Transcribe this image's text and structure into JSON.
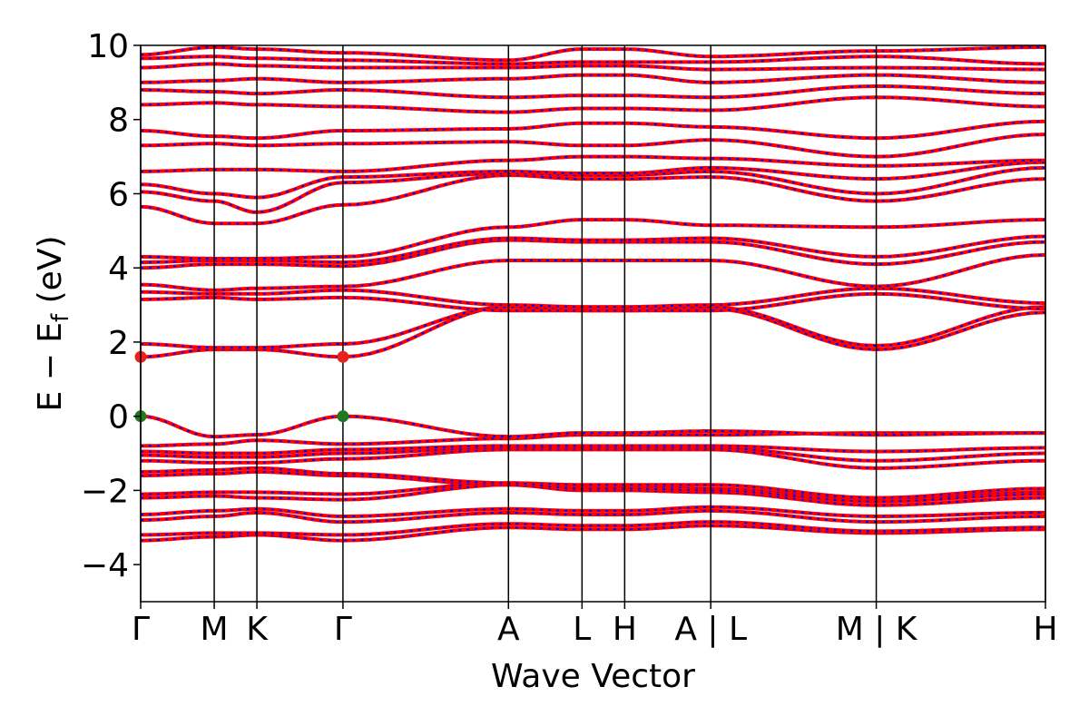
{
  "chart_data": {
    "type": "line",
    "xlabel": "Wave Vector",
    "ylabel_parts": {
      "main": "E − E",
      "sub": "f",
      "unit": " (eV)"
    },
    "ylim": [
      -5,
      10
    ],
    "yticks": [
      {
        "value": -4,
        "label": "−4"
      },
      {
        "value": -2,
        "label": "−2"
      },
      {
        "value": 0,
        "label": "0"
      },
      {
        "value": 2,
        "label": "2"
      },
      {
        "value": 4,
        "label": "4"
      },
      {
        "value": 6,
        "label": "6"
      },
      {
        "value": 8,
        "label": "8"
      },
      {
        "value": 10,
        "label": "10"
      }
    ],
    "xlim": [
      0,
      12.3
    ],
    "kpoints": [
      {
        "x": 0.0,
        "label": "Γ"
      },
      {
        "x": 1.0,
        "label": "M"
      },
      {
        "x": 1.58,
        "label": "K"
      },
      {
        "x": 2.75,
        "label": "Γ"
      },
      {
        "x": 5.0,
        "label": "A"
      },
      {
        "x": 6.0,
        "label": "L"
      },
      {
        "x": 6.58,
        "label": "H"
      },
      {
        "x": 7.75,
        "label": "A | L"
      },
      {
        "x": 10.0,
        "label": "M | K"
      },
      {
        "x": 12.3,
        "label": "H"
      }
    ],
    "grid": false,
    "style": {
      "line_color": "#ff0000",
      "overlay_color": "#0000ff"
    },
    "markers": [
      {
        "x": 0.0,
        "y": 1.6,
        "color": "#e8231f"
      },
      {
        "x": 2.75,
        "y": 1.6,
        "color": "#e8231f"
      },
      {
        "x": 0.0,
        "y": 0.0,
        "color": "#1f7a1f"
      },
      {
        "x": 2.75,
        "y": 0.0,
        "color": "#1f7a1f"
      }
    ],
    "bands": [
      [
        -3.35,
        -3.25,
        -3.2,
        -3.35,
        -3.0,
        -3.05,
        -3.05,
        -2.95,
        -3.15,
        -3.05
      ],
      [
        -3.2,
        -3.15,
        -3.15,
        -3.2,
        -2.9,
        -2.95,
        -2.95,
        -2.85,
        -3.1,
        -3.0
      ],
      [
        -2.8,
        -2.7,
        -2.6,
        -2.85,
        -2.6,
        -2.65,
        -2.65,
        -2.55,
        -2.85,
        -2.7
      ],
      [
        -2.65,
        -2.55,
        -2.5,
        -2.7,
        -2.5,
        -2.55,
        -2.55,
        -2.45,
        -2.7,
        -2.6
      ],
      [
        -2.2,
        -2.15,
        -2.2,
        -2.25,
        -1.85,
        -1.9,
        -1.9,
        -1.95,
        -2.25,
        -2.05
      ],
      [
        -2.1,
        -2.05,
        -2.05,
        -2.1,
        -1.8,
        -1.85,
        -1.85,
        -1.85,
        -2.2,
        -1.95
      ],
      [
        -1.6,
        -1.55,
        -1.5,
        -1.6,
        -1.85,
        -2.0,
        -2.0,
        -2.05,
        -2.4,
        -2.2
      ],
      [
        -1.5,
        -1.45,
        -1.4,
        -1.55,
        -1.8,
        -1.95,
        -1.95,
        -2.0,
        -2.3,
        -2.1
      ],
      [
        -1.2,
        -1.25,
        -1.25,
        -1.15,
        -0.9,
        -0.9,
        -0.9,
        -0.9,
        -1.4,
        -1.2
      ],
      [
        -1.05,
        -1.1,
        -1.1,
        -1.0,
        -0.85,
        -0.85,
        -0.85,
        -0.85,
        -1.2,
        -1.0
      ],
      [
        -0.95,
        -1.0,
        -1.0,
        -0.9,
        -0.8,
        -0.8,
        -0.8,
        -0.8,
        -0.95,
        -0.85
      ],
      [
        -0.8,
        -0.75,
        -0.65,
        -0.75,
        -0.6,
        -0.5,
        -0.5,
        -0.5,
        -0.45,
        -0.45
      ],
      [
        0.0,
        -0.55,
        -0.5,
        0.0,
        -0.55,
        -0.45,
        -0.45,
        -0.4,
        -0.5,
        -0.45
      ],
      [
        1.6,
        1.8,
        1.8,
        1.6,
        2.95,
        2.85,
        2.85,
        2.9,
        1.8,
        2.8
      ],
      [
        1.95,
        1.85,
        1.85,
        1.95,
        2.95,
        2.9,
        2.9,
        2.95,
        1.9,
        2.95
      ],
      [
        3.15,
        3.2,
        3.15,
        3.2,
        2.85,
        2.85,
        2.85,
        2.85,
        3.3,
        2.9
      ],
      [
        3.35,
        3.3,
        3.3,
        3.4,
        3.0,
        2.95,
        2.95,
        3.0,
        3.45,
        3.05
      ],
      [
        3.55,
        3.4,
        3.45,
        3.5,
        4.2,
        4.2,
        4.2,
        4.2,
        3.5,
        4.35
      ],
      [
        4.0,
        4.1,
        4.1,
        4.05,
        4.75,
        4.7,
        4.7,
        4.7,
        4.1,
        4.7
      ],
      [
        4.15,
        4.2,
        4.2,
        4.15,
        4.8,
        4.75,
        4.75,
        4.8,
        4.3,
        4.85
      ],
      [
        4.3,
        4.25,
        4.25,
        4.3,
        5.1,
        5.3,
        5.3,
        5.15,
        5.1,
        5.3
      ],
      [
        5.65,
        5.2,
        5.2,
        5.7,
        6.5,
        6.4,
        6.4,
        6.45,
        5.8,
        6.4
      ],
      [
        6.05,
        5.8,
        5.5,
        6.3,
        6.55,
        6.5,
        6.5,
        6.6,
        6.0,
        6.7
      ],
      [
        6.25,
        6.0,
        5.9,
        6.45,
        6.6,
        6.55,
        6.55,
        6.7,
        6.4,
        6.85
      ],
      [
        6.6,
        6.65,
        6.65,
        6.6,
        6.9,
        7.0,
        7.0,
        6.95,
        6.75,
        6.9
      ],
      [
        7.3,
        7.35,
        7.3,
        7.35,
        7.4,
        7.3,
        7.3,
        7.45,
        7.0,
        7.6
      ],
      [
        7.7,
        7.55,
        7.5,
        7.7,
        7.75,
        7.9,
        7.9,
        7.8,
        7.5,
        7.95
      ],
      [
        8.4,
        8.45,
        8.4,
        8.35,
        8.2,
        8.3,
        8.3,
        8.25,
        8.6,
        8.35
      ],
      [
        8.8,
        8.75,
        8.7,
        8.8,
        8.6,
        8.65,
        8.65,
        8.6,
        8.9,
        8.7
      ],
      [
        9.0,
        9.05,
        9.1,
        9.0,
        9.1,
        9.2,
        9.2,
        9.0,
        9.2,
        9.0
      ],
      [
        9.4,
        9.5,
        9.45,
        9.4,
        9.4,
        9.45,
        9.45,
        9.35,
        9.4,
        9.35
      ],
      [
        9.65,
        9.7,
        9.65,
        9.6,
        9.5,
        9.55,
        9.55,
        9.55,
        9.7,
        9.5
      ],
      [
        9.75,
        9.95,
        9.9,
        9.8,
        9.6,
        9.9,
        9.9,
        9.7,
        9.85,
        9.95
      ]
    ]
  }
}
